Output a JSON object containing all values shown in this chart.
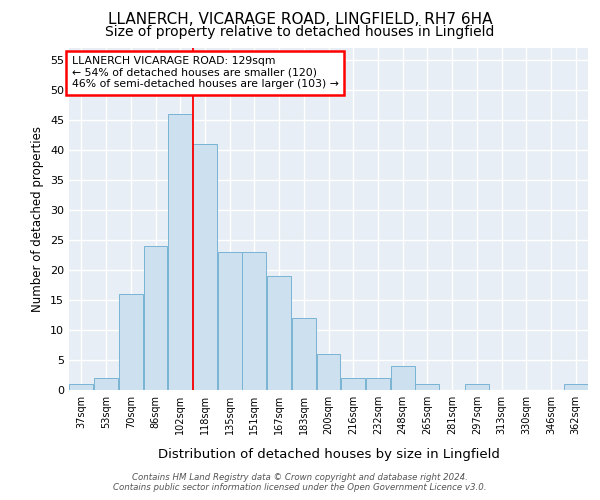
{
  "title1": "LLANERCH, VICARAGE ROAD, LINGFIELD, RH7 6HA",
  "title2": "Size of property relative to detached houses in Lingfield",
  "xlabel": "Distribution of detached houses by size in Lingfield",
  "ylabel": "Number of detached properties",
  "categories": [
    "37sqm",
    "53sqm",
    "70sqm",
    "86sqm",
    "102sqm",
    "118sqm",
    "135sqm",
    "151sqm",
    "167sqm",
    "183sqm",
    "200sqm",
    "216sqm",
    "232sqm",
    "248sqm",
    "265sqm",
    "281sqm",
    "297sqm",
    "313sqm",
    "330sqm",
    "346sqm",
    "362sqm"
  ],
  "values": [
    1,
    2,
    16,
    24,
    46,
    41,
    23,
    23,
    19,
    12,
    6,
    2,
    2,
    4,
    1,
    0,
    1,
    0,
    0,
    0,
    1
  ],
  "bar_color": "#cce0f0",
  "bar_edge_color": "#7ab3d4",
  "annotation_text": "LLANERCH VICARAGE ROAD: 129sqm\n← 54% of detached houses are smaller (120)\n46% of semi-detached houses are larger (103) →",
  "annotation_box_color": "white",
  "annotation_box_edge_color": "red",
  "vline_x": 4.5,
  "vline_color": "red",
  "ylim": [
    0,
    57
  ],
  "yticks": [
    0,
    5,
    10,
    15,
    20,
    25,
    30,
    35,
    40,
    45,
    50,
    55
  ],
  "footer": "Contains HM Land Registry data © Crown copyright and database right 2024.\nContains public sector information licensed under the Open Government Licence v3.0.",
  "bg_color": "#ffffff",
  "plot_bg_color": "#e8eef5",
  "grid_color": "white",
  "title1_fontsize": 11,
  "title2_fontsize": 10
}
